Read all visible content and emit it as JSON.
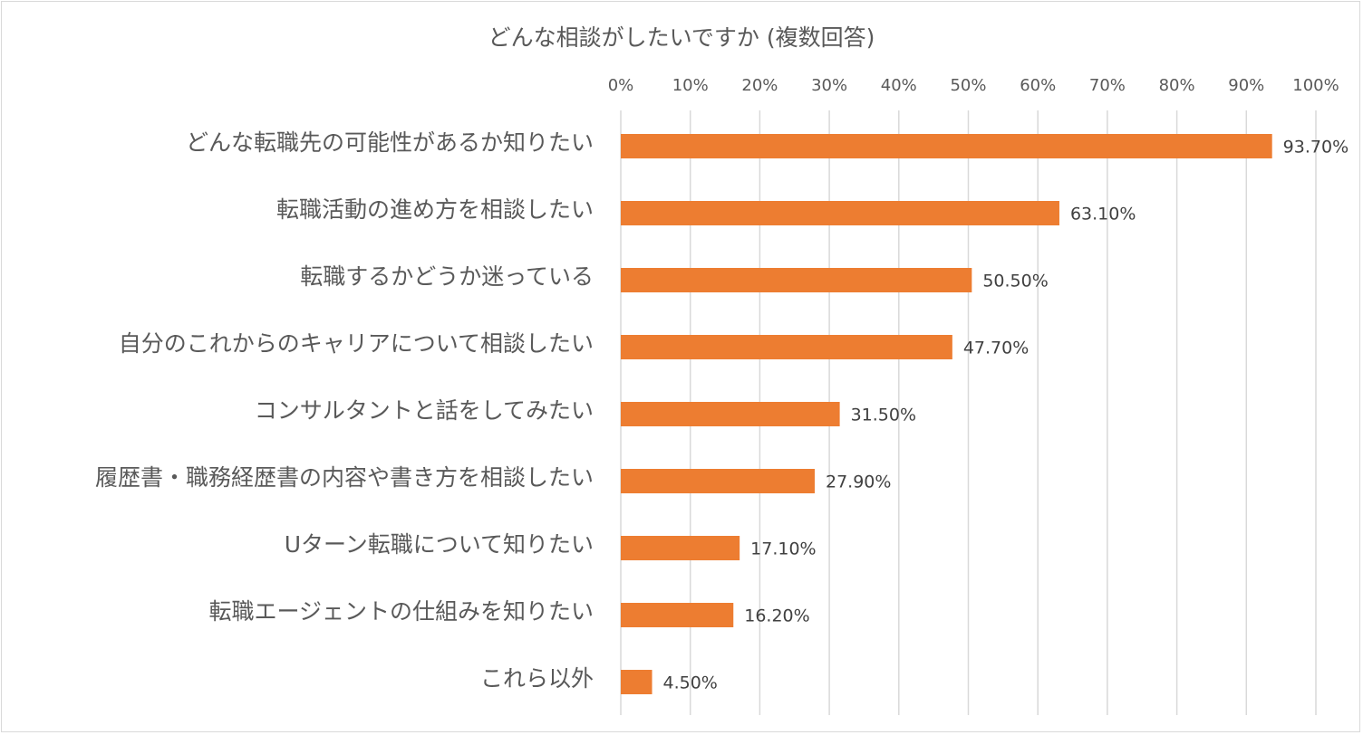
{
  "chart_data": {
    "type": "bar",
    "orientation": "horizontal",
    "title": "どんな相談がしたいですか (複数回答)",
    "xlabel": "",
    "ylabel": "",
    "xlim": [
      0,
      100
    ],
    "x_ticks": [
      "0%",
      "10%",
      "20%",
      "30%",
      "40%",
      "50%",
      "60%",
      "70%",
      "80%",
      "90%",
      "100%"
    ],
    "x_axis_position": "top",
    "grid": true,
    "legend": "none",
    "bar_color": "#ED7D31",
    "categories": [
      "どんな転職先の可能性があるか知りたい",
      "転職活動の進め方を相談したい",
      "転職するかどうか迷っている",
      "自分のこれからのキャリアについて相談したい",
      "コンサルタントと話をしてみたい",
      "履歴書・職務経歴書の内容や書き方を相談したい",
      "Uターン転職について知りたい",
      "転職エージェントの仕組みを知りたい",
      "これら以外"
    ],
    "values": [
      93.7,
      63.1,
      50.5,
      47.7,
      31.5,
      27.9,
      17.1,
      16.2,
      4.5
    ],
    "value_labels": [
      "93.70%",
      "63.10%",
      "50.50%",
      "47.70%",
      "31.50%",
      "27.90%",
      "17.10%",
      "16.20%",
      "4.50%"
    ]
  }
}
